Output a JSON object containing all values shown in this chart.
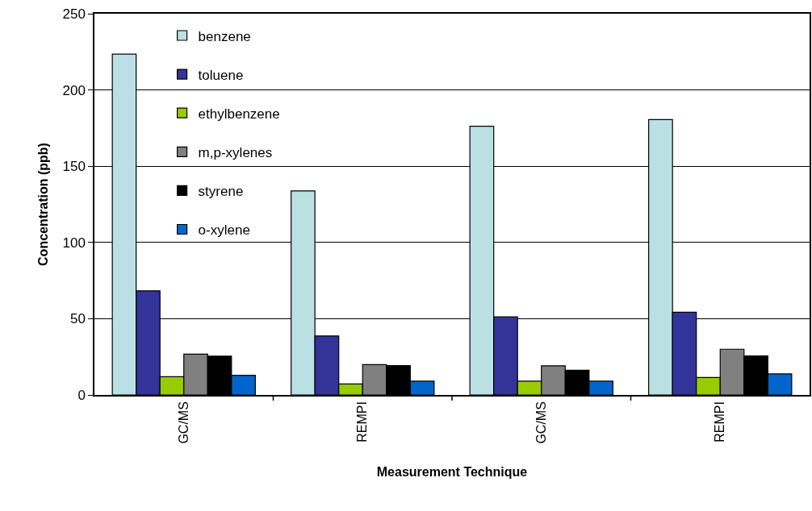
{
  "chart_data": {
    "type": "bar",
    "xlabel": "Measurement Technique",
    "ylabel": "Concentration (ppb)",
    "categories": [
      "GC/MS",
      "REMPI",
      "GC/MS",
      "REMPI"
    ],
    "series": [
      {
        "name": "benzene",
        "color": "#bbe0e3",
        "values": [
          223.5,
          133.8,
          176.2,
          180.6
        ]
      },
      {
        "name": "toluene",
        "color": "#333399",
        "values": [
          68.3,
          38.7,
          51.2,
          54.2
        ]
      },
      {
        "name": "ethylbenzene",
        "color": "#99cc00",
        "values": [
          12,
          7.2,
          9,
          11.4
        ]
      },
      {
        "name": "m,p-xylenes",
        "color": "#808080",
        "values": [
          26.8,
          19.9,
          19.1,
          30
        ]
      },
      {
        "name": "styrene",
        "color": "#000000",
        "values": [
          25.4,
          19.2,
          16.2,
          25.6
        ]
      },
      {
        "name": "o-xylene",
        "color": "#0066cc",
        "values": [
          12.9,
          9,
          9,
          13.8
        ]
      }
    ],
    "ylim": [
      0,
      250
    ],
    "yticks": [
      0,
      50,
      100,
      150,
      200,
      250
    ],
    "grid": "y",
    "legend": "top left"
  }
}
